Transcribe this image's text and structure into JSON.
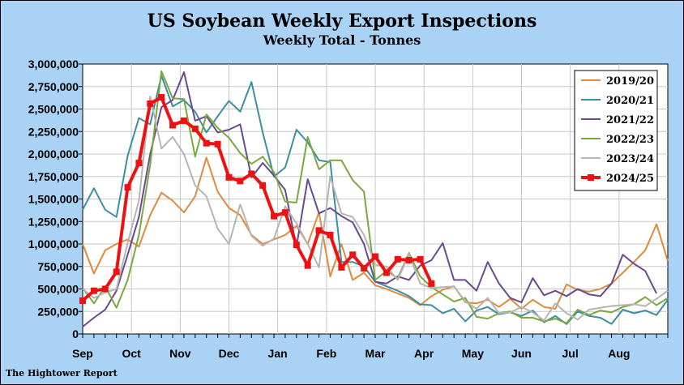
{
  "chart_data": {
    "type": "line",
    "title": "US Soybean Weekly Export Inspections",
    "subtitle": "Weekly Total - Tonnes",
    "footer": "The Hightower Report",
    "ylim": [
      0,
      3000000
    ],
    "y_ticks": [
      "3,000,000",
      "2,750,000",
      "2,500,000",
      "2,250,000",
      "2,000,000",
      "1,750,000",
      "1,500,000",
      "1,250,000",
      "1,000,000",
      "750,000",
      "500,000",
      "250,000",
      "0"
    ],
    "y_tick_values": [
      3000000,
      2750000,
      2500000,
      2250000,
      2000000,
      1750000,
      1500000,
      1250000,
      1000000,
      750000,
      500000,
      250000,
      0
    ],
    "x_month_labels": [
      "Sep",
      "Oct",
      "Nov",
      "Dec",
      "Jan",
      "Feb",
      "Mar",
      "Apr",
      "May",
      "Jun",
      "Jul",
      "Aug"
    ],
    "x_week_count": 53,
    "grid": true,
    "legend_position": "top-right",
    "series": [
      {
        "name": "2019/20",
        "color": "#e08a3c",
        "values": [
          1000000,
          670000,
          930000,
          1000000,
          1050000,
          970000,
          1320000,
          1570000,
          1480000,
          1350000,
          1530000,
          1960000,
          1580000,
          1400000,
          1320000,
          1100000,
          1000000,
          1050000,
          1100000,
          1200000,
          1000000,
          1350000,
          640000,
          1000000,
          600000,
          680000,
          540000,
          500000,
          450000,
          400000,
          320000,
          420000,
          490000,
          530000,
          350000,
          340000,
          380000,
          300000,
          390000,
          280000,
          380000,
          300000,
          280000,
          550000,
          490000,
          470000,
          500000,
          560000,
          680000,
          800000,
          930000,
          1220000,
          810000
        ]
      },
      {
        "name": "2020/21",
        "color": "#3a8fa3",
        "values": [
          1380000,
          1620000,
          1380000,
          1300000,
          1980000,
          2400000,
          2330000,
          2870000,
          2530000,
          2600000,
          2470000,
          2240000,
          2420000,
          2590000,
          2470000,
          2800000,
          2240000,
          1750000,
          1850000,
          2270000,
          2130000,
          1930000,
          1910000,
          800000,
          800000,
          750000,
          580000,
          530000,
          480000,
          420000,
          330000,
          320000,
          230000,
          280000,
          140000,
          260000,
          300000,
          220000,
          240000,
          200000,
          260000,
          130000,
          200000,
          110000,
          250000,
          200000,
          180000,
          110000,
          270000,
          230000,
          260000,
          210000,
          380000
        ]
      },
      {
        "name": "2021/22",
        "color": "#6a4a8f",
        "values": [
          80000,
          180000,
          270000,
          480000,
          880000,
          1300000,
          2000000,
          2520000,
          2600000,
          2910000,
          2370000,
          2420000,
          2240000,
          2270000,
          2330000,
          1740000,
          1900000,
          1760000,
          1600000,
          970000,
          1720000,
          1340000,
          1400000,
          1310000,
          1240000,
          1000000,
          580000,
          560000,
          640000,
          600000,
          760000,
          820000,
          1010000,
          600000,
          600000,
          480000,
          800000,
          560000,
          400000,
          350000,
          620000,
          430000,
          480000,
          420000,
          500000,
          440000,
          420000,
          560000,
          880000,
          780000,
          700000,
          450000,
          null
        ]
      },
      {
        "name": "2022/23",
        "color": "#7aa83e",
        "values": [
          510000,
          340000,
          530000,
          290000,
          600000,
          1100000,
          1880000,
          2920000,
          2620000,
          2610000,
          1970000,
          2440000,
          2290000,
          2180000,
          2010000,
          1890000,
          1970000,
          1800000,
          1470000,
          1460000,
          2190000,
          1830000,
          1930000,
          1930000,
          1710000,
          1580000,
          600000,
          700000,
          620000,
          900000,
          640000,
          520000,
          440000,
          360000,
          400000,
          190000,
          170000,
          230000,
          250000,
          180000,
          180000,
          140000,
          170000,
          120000,
          270000,
          210000,
          260000,
          240000,
          300000,
          330000,
          410000,
          320000,
          400000
        ]
      },
      {
        "name": "2023/24",
        "color": "#b5b5b5",
        "values": [
          500000,
          400000,
          460000,
          500000,
          1010000,
          1480000,
          2640000,
          2060000,
          2190000,
          2000000,
          1650000,
          1530000,
          1170000,
          1000000,
          1440000,
          1090000,
          980000,
          1060000,
          1420000,
          1230000,
          1000000,
          740000,
          1750000,
          1340000,
          1300000,
          1100000,
          770000,
          750000,
          600000,
          890000,
          560000,
          510000,
          520000,
          530000,
          360000,
          280000,
          400000,
          230000,
          240000,
          300000,
          240000,
          150000,
          340000,
          230000,
          160000,
          270000,
          290000,
          310000,
          320000,
          330000,
          310000,
          390000,
          480000
        ]
      },
      {
        "name": "2024/25",
        "color": "#ee1111",
        "values": [
          370000,
          480000,
          500000,
          690000,
          1630000,
          1900000,
          2560000,
          2630000,
          2320000,
          2370000,
          2280000,
          2120000,
          2110000,
          1740000,
          1700000,
          1780000,
          1650000,
          1310000,
          1350000,
          990000,
          760000,
          1150000,
          1100000,
          740000,
          880000,
          730000,
          860000,
          680000,
          830000,
          820000,
          830000,
          560000,
          null,
          null,
          null,
          null,
          null,
          null,
          null,
          null,
          null,
          null,
          null,
          null,
          null,
          null,
          null,
          null,
          null,
          null,
          null,
          null,
          null
        ]
      }
    ]
  }
}
